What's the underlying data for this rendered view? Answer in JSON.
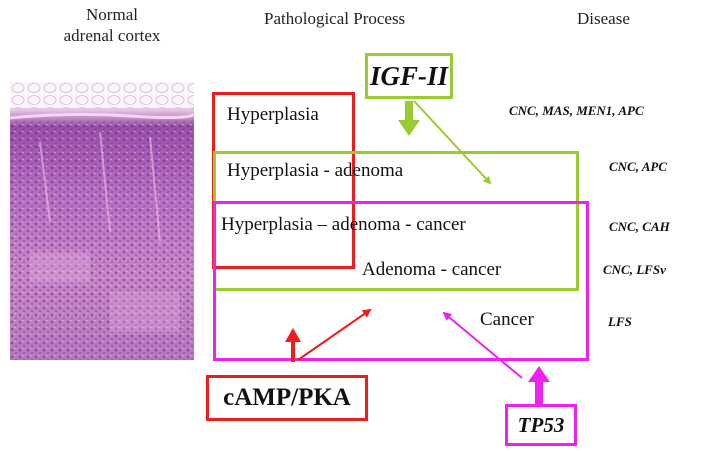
{
  "headers": {
    "normal_line1": "Normal",
    "normal_line2": "adrenal cortex",
    "process": "Pathological Process",
    "disease": "Disease"
  },
  "processes": {
    "hyperplasia": "Hyperplasia",
    "hyperplasia_adenoma": "Hyperplasia - adenoma",
    "hyperplasia_adenoma_cancer": "Hyperplasia – adenoma - cancer",
    "adenoma_cancer": "Adenoma - cancer",
    "cancer": "Cancer"
  },
  "diseases": {
    "row1": "CNC, MAS, MEN1, APC",
    "row2": "CNC, APC",
    "row3": "CNC, CAH",
    "row4": "CNC, LFSv",
    "row5": "LFS"
  },
  "pathways": {
    "igf": "IGF-II",
    "camp": "cAMP/PKA",
    "tp53": "TP53"
  },
  "colors": {
    "red": "#ee1c1c",
    "green": "#99cc33",
    "magenta": "#ee22ee",
    "tissue_pink": "#d98fd0",
    "tissue_purple": "#a455b4"
  }
}
